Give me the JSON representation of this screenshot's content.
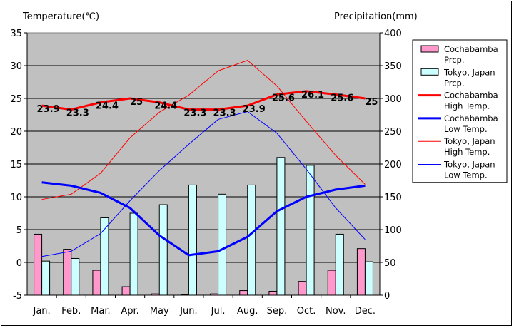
{
  "chart_data": {
    "type": "bar+line",
    "categories": [
      "Jan.",
      "Feb.",
      "Mar.",
      "Apr.",
      "May",
      "Jun.",
      "Jul.",
      "Aug.",
      "Sep.",
      "Oct.",
      "Nov.",
      "Dec."
    ],
    "left_axis": {
      "label": "Temperature(℃)",
      "min": -5,
      "max": 35,
      "ticks": [
        -5,
        0,
        5,
        10,
        15,
        20,
        25,
        30,
        35
      ]
    },
    "right_axis": {
      "label": "Precipitation(mm)",
      "min": 0,
      "max": 400,
      "ticks": [
        0,
        50,
        100,
        150,
        200,
        250,
        300,
        350,
        400
      ]
    },
    "grid": "horizontal",
    "legend_position": "right",
    "bar_series": [
      {
        "name": "Cochabamba\nPrcp.",
        "color": "#ff99cc",
        "values": [
          93,
          70,
          38,
          13,
          2,
          1,
          2,
          7,
          6,
          21,
          38,
          71
        ]
      },
      {
        "name": "Tokyo, Japan\nPrcp.",
        "color": "#ccffff",
        "values": [
          52,
          56,
          118,
          125,
          138,
          168,
          154,
          168,
          210,
          198,
          93,
          51
        ]
      }
    ],
    "line_series": [
      {
        "name": "Cochabamba\nHigh Temp.",
        "color": "#ff0000",
        "width": "thick",
        "values": [
          23.9,
          23.3,
          24.4,
          25,
          24.4,
          23.3,
          23.3,
          23.9,
          25.6,
          26.1,
          25.6,
          25
        ],
        "labels": [
          "23.9",
          "23.3",
          "24.4",
          "25",
          "24.4",
          "23.3",
          "23.3",
          "23.9",
          "25.6",
          "26.1",
          "25.6",
          "25"
        ]
      },
      {
        "name": "Cochabamba\nLow Temp.",
        "color": "#0000ff",
        "width": "thick",
        "values": [
          12.2,
          11.7,
          10.6,
          8.3,
          4.1,
          1.1,
          1.7,
          3.9,
          7.8,
          10.0,
          11.1,
          11.7
        ]
      },
      {
        "name": "Tokyo, Japan\nHigh Temp.",
        "color": "#ff0000",
        "width": "thin",
        "values": [
          9.6,
          10.4,
          13.6,
          19.0,
          22.9,
          25.5,
          29.2,
          30.8,
          26.9,
          21.5,
          16.3,
          11.9
        ]
      },
      {
        "name": "Tokyo, Japan\nLow Temp.",
        "color": "#0000ff",
        "width": "thin",
        "values": [
          0.9,
          1.7,
          4.4,
          9.4,
          14.0,
          18.0,
          21.8,
          23.0,
          19.7,
          14.2,
          8.3,
          3.5
        ]
      }
    ]
  }
}
